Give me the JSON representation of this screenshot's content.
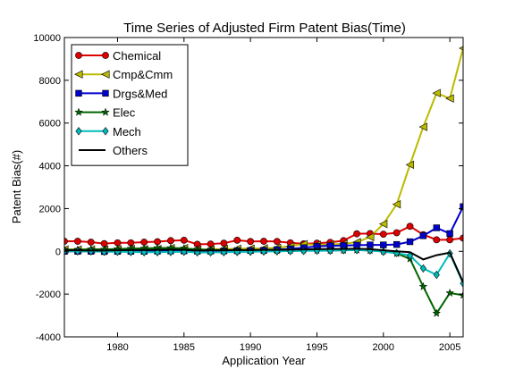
{
  "chart_data": {
    "type": "line",
    "title": "Time Series of Adjusted Firm Patent Bias(Time)",
    "xlabel": "Application Year",
    "ylabel": "Patent Bias(#)",
    "xlim": [
      1976,
      2006
    ],
    "ylim": [
      -4000,
      10000
    ],
    "xticks": [
      1980,
      1985,
      1990,
      1995,
      2000,
      2005
    ],
    "yticks": [
      -4000,
      -2000,
      0,
      2000,
      4000,
      6000,
      8000,
      10000
    ],
    "grid": false,
    "legend_position": "top-left",
    "x": [
      1976,
      1977,
      1978,
      1979,
      1980,
      1981,
      1982,
      1983,
      1984,
      1985,
      1986,
      1987,
      1988,
      1989,
      1990,
      1991,
      1992,
      1993,
      1994,
      1995,
      1996,
      1997,
      1998,
      1999,
      2000,
      2001,
      2002,
      2003,
      2004,
      2005,
      2006
    ],
    "series": [
      {
        "name": "Chemical",
        "color": "#dd0000",
        "marker": "circle",
        "values": [
          470,
          470,
          430,
          360,
          400,
          400,
          430,
          450,
          500,
          520,
          330,
          340,
          380,
          520,
          460,
          470,
          460,
          400,
          350,
          380,
          420,
          500,
          820,
          830,
          800,
          870,
          1170,
          780,
          540,
          540,
          620
        ]
      },
      {
        "name": "Cmp&Cmm",
        "color": "#bbbb00",
        "marker": "triangle-left",
        "values": [
          90,
          90,
          90,
          80,
          100,
          110,
          100,
          110,
          150,
          150,
          80,
          90,
          110,
          120,
          130,
          140,
          170,
          240,
          340,
          300,
          320,
          350,
          430,
          670,
          1280,
          2200,
          4050,
          5820,
          7400,
          7150,
          9500
        ]
      },
      {
        "name": "Drgs&Med",
        "color": "#0000cc",
        "marker": "square",
        "values": [
          0,
          0,
          0,
          -10,
          0,
          0,
          0,
          10,
          20,
          20,
          10,
          10,
          20,
          30,
          40,
          50,
          80,
          120,
          170,
          230,
          260,
          270,
          290,
          300,
          300,
          320,
          450,
          730,
          1100,
          830,
          2090
        ]
      },
      {
        "name": "Elec",
        "color": "#006600",
        "marker": "star",
        "values": [
          80,
          70,
          100,
          90,
          110,
          130,
          140,
          160,
          160,
          140,
          90,
          70,
          60,
          60,
          40,
          30,
          30,
          40,
          60,
          50,
          40,
          50,
          60,
          40,
          10,
          -100,
          -350,
          -1650,
          -2900,
          -1950,
          -2050
        ]
      },
      {
        "name": "Mech",
        "color": "#00bbbb",
        "marker": "diamond",
        "values": [
          0,
          0,
          0,
          -20,
          -20,
          -30,
          -40,
          -40,
          -30,
          -20,
          -50,
          -50,
          -40,
          -30,
          -20,
          -10,
          0,
          10,
          20,
          30,
          30,
          50,
          60,
          40,
          -20,
          -80,
          -200,
          -800,
          -1100,
          -100,
          -1500
        ]
      },
      {
        "name": "Others",
        "color": "#000000",
        "marker": "none",
        "values": [
          50,
          50,
          40,
          40,
          50,
          60,
          60,
          70,
          80,
          70,
          40,
          50,
          50,
          60,
          60,
          70,
          70,
          80,
          90,
          100,
          110,
          110,
          120,
          100,
          50,
          0,
          -40,
          -380,
          -180,
          -60,
          -1450
        ]
      }
    ]
  }
}
